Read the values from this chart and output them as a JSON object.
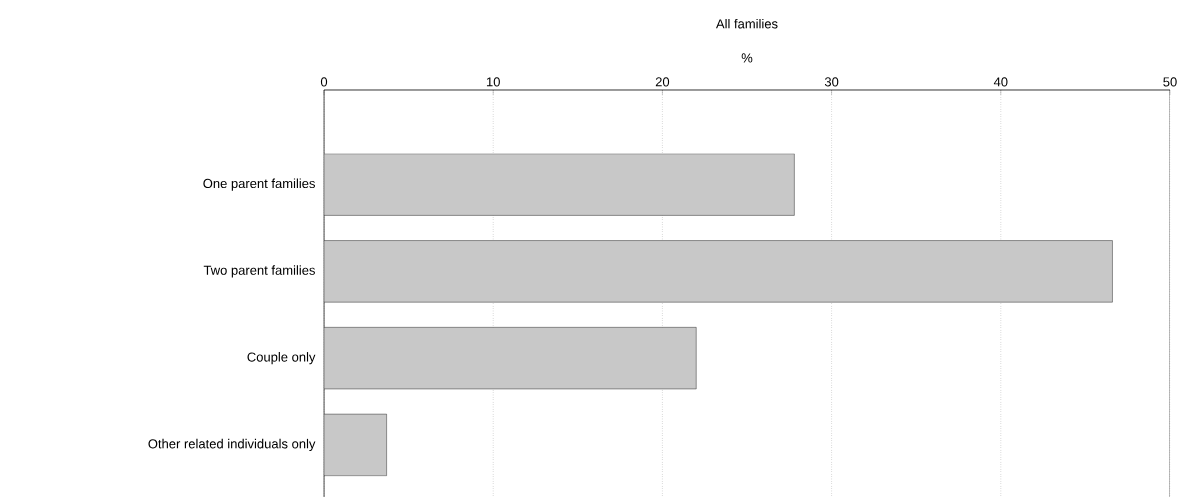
{
  "chart_data": {
    "type": "bar",
    "orientation": "horizontal",
    "title": "All families",
    "xlabel": "%",
    "categories": [
      "One parent families",
      "Two parent families",
      "Couple only",
      "Other related individuals only"
    ],
    "values": [
      27.8,
      46.6,
      22.0,
      3.7
    ],
    "color": "#c8c8c8",
    "xlim": [
      0,
      50
    ],
    "xticks": [
      0,
      10,
      20,
      30,
      40,
      50
    ],
    "grid": "x"
  }
}
